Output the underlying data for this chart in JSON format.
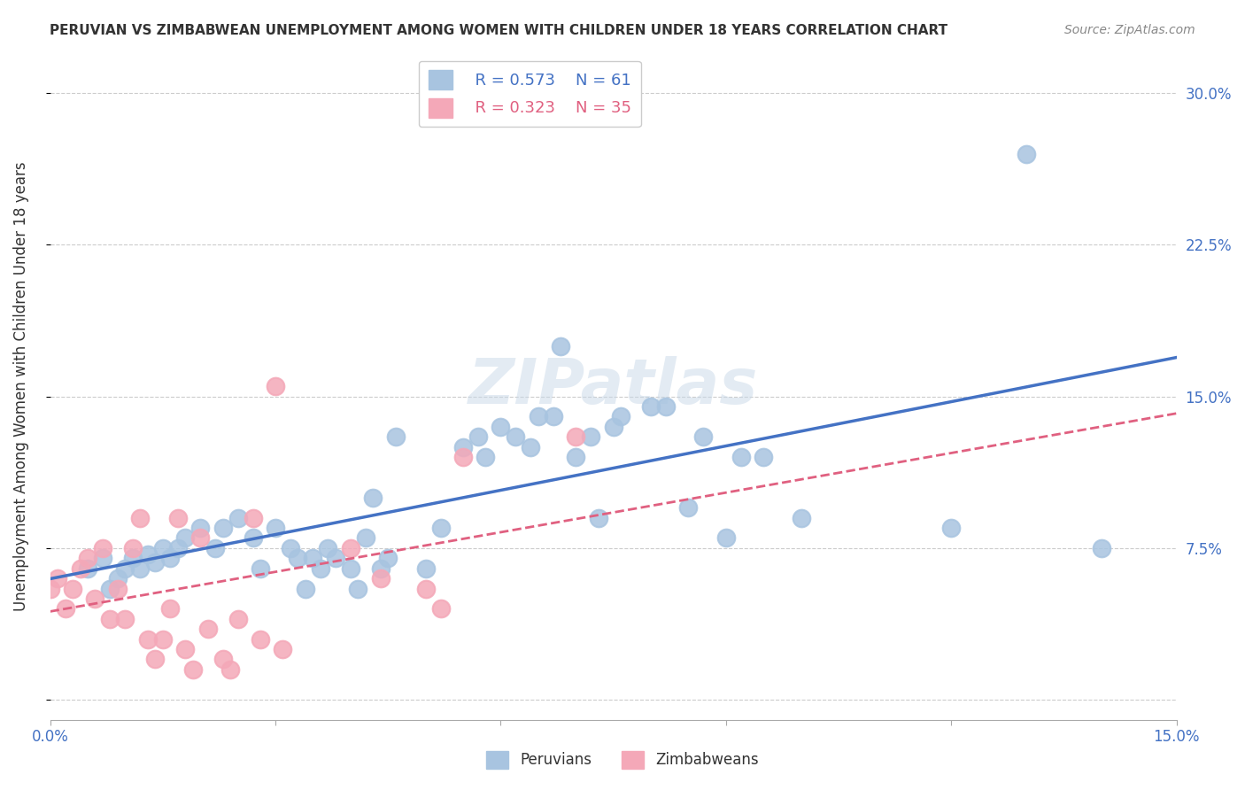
{
  "title": "PERUVIAN VS ZIMBABWEAN UNEMPLOYMENT AMONG WOMEN WITH CHILDREN UNDER 18 YEARS CORRELATION CHART",
  "source": "Source: ZipAtlas.com",
  "xlabel_bottom": "",
  "ylabel": "Unemployment Among Women with Children Under 18 years",
  "xlim": [
    0.0,
    0.15
  ],
  "ylim": [
    -0.01,
    0.32
  ],
  "xticks": [
    0.0,
    0.03,
    0.06,
    0.09,
    0.12,
    0.15
  ],
  "xtick_labels": [
    "0.0%",
    "",
    "",
    "",
    "",
    "15.0%"
  ],
  "ytick_positions": [
    0.0,
    0.075,
    0.15,
    0.225,
    0.3
  ],
  "ytick_labels": [
    "",
    "7.5%",
    "15.0%",
    "22.5%",
    "30.0%"
  ],
  "legend_r_peru": "R = 0.573",
  "legend_n_peru": "N = 61",
  "legend_r_zimb": "R = 0.323",
  "legend_n_zimb": "N = 35",
  "peru_color": "#a8c4e0",
  "zimb_color": "#f4a8b8",
  "peru_line_color": "#4472c4",
  "zimb_line_color": "#e06080",
  "peru_scatter": [
    [
      0.005,
      0.065
    ],
    [
      0.007,
      0.07
    ],
    [
      0.008,
      0.055
    ],
    [
      0.009,
      0.06
    ],
    [
      0.01,
      0.065
    ],
    [
      0.011,
      0.07
    ],
    [
      0.012,
      0.065
    ],
    [
      0.013,
      0.072
    ],
    [
      0.014,
      0.068
    ],
    [
      0.015,
      0.075
    ],
    [
      0.016,
      0.07
    ],
    [
      0.017,
      0.075
    ],
    [
      0.018,
      0.08
    ],
    [
      0.02,
      0.085
    ],
    [
      0.022,
      0.075
    ],
    [
      0.023,
      0.085
    ],
    [
      0.025,
      0.09
    ],
    [
      0.027,
      0.08
    ],
    [
      0.028,
      0.065
    ],
    [
      0.03,
      0.085
    ],
    [
      0.032,
      0.075
    ],
    [
      0.033,
      0.07
    ],
    [
      0.034,
      0.055
    ],
    [
      0.035,
      0.07
    ],
    [
      0.036,
      0.065
    ],
    [
      0.037,
      0.075
    ],
    [
      0.038,
      0.07
    ],
    [
      0.04,
      0.065
    ],
    [
      0.041,
      0.055
    ],
    [
      0.042,
      0.08
    ],
    [
      0.043,
      0.1
    ],
    [
      0.044,
      0.065
    ],
    [
      0.045,
      0.07
    ],
    [
      0.046,
      0.13
    ],
    [
      0.05,
      0.065
    ],
    [
      0.052,
      0.085
    ],
    [
      0.055,
      0.125
    ],
    [
      0.057,
      0.13
    ],
    [
      0.058,
      0.12
    ],
    [
      0.06,
      0.135
    ],
    [
      0.062,
      0.13
    ],
    [
      0.064,
      0.125
    ],
    [
      0.065,
      0.14
    ],
    [
      0.067,
      0.14
    ],
    [
      0.068,
      0.175
    ],
    [
      0.07,
      0.12
    ],
    [
      0.072,
      0.13
    ],
    [
      0.073,
      0.09
    ],
    [
      0.075,
      0.135
    ],
    [
      0.076,
      0.14
    ],
    [
      0.08,
      0.145
    ],
    [
      0.082,
      0.145
    ],
    [
      0.085,
      0.095
    ],
    [
      0.087,
      0.13
    ],
    [
      0.09,
      0.08
    ],
    [
      0.092,
      0.12
    ],
    [
      0.095,
      0.12
    ],
    [
      0.1,
      0.09
    ],
    [
      0.12,
      0.085
    ],
    [
      0.13,
      0.27
    ],
    [
      0.14,
      0.075
    ]
  ],
  "zimb_scatter": [
    [
      0.0,
      0.055
    ],
    [
      0.001,
      0.06
    ],
    [
      0.002,
      0.045
    ],
    [
      0.003,
      0.055
    ],
    [
      0.004,
      0.065
    ],
    [
      0.005,
      0.07
    ],
    [
      0.006,
      0.05
    ],
    [
      0.007,
      0.075
    ],
    [
      0.008,
      0.04
    ],
    [
      0.009,
      0.055
    ],
    [
      0.01,
      0.04
    ],
    [
      0.011,
      0.075
    ],
    [
      0.012,
      0.09
    ],
    [
      0.013,
      0.03
    ],
    [
      0.014,
      0.02
    ],
    [
      0.015,
      0.03
    ],
    [
      0.016,
      0.045
    ],
    [
      0.017,
      0.09
    ],
    [
      0.018,
      0.025
    ],
    [
      0.019,
      0.015
    ],
    [
      0.02,
      0.08
    ],
    [
      0.021,
      0.035
    ],
    [
      0.023,
      0.02
    ],
    [
      0.024,
      0.015
    ],
    [
      0.025,
      0.04
    ],
    [
      0.027,
      0.09
    ],
    [
      0.028,
      0.03
    ],
    [
      0.03,
      0.155
    ],
    [
      0.031,
      0.025
    ],
    [
      0.04,
      0.075
    ],
    [
      0.044,
      0.06
    ],
    [
      0.05,
      0.055
    ],
    [
      0.052,
      0.045
    ],
    [
      0.055,
      0.12
    ],
    [
      0.07,
      0.13
    ]
  ],
  "watermark": "ZIPatlas",
  "legend_label_peru": "Peruvians",
  "legend_label_zimb": "Zimbabweans",
  "background_color": "#ffffff",
  "grid_color": "#cccccc",
  "title_color": "#333333",
  "axis_label_color": "#333333",
  "tick_label_color_right": "#4472c4",
  "tick_label_color_bottom": "#4472c4"
}
